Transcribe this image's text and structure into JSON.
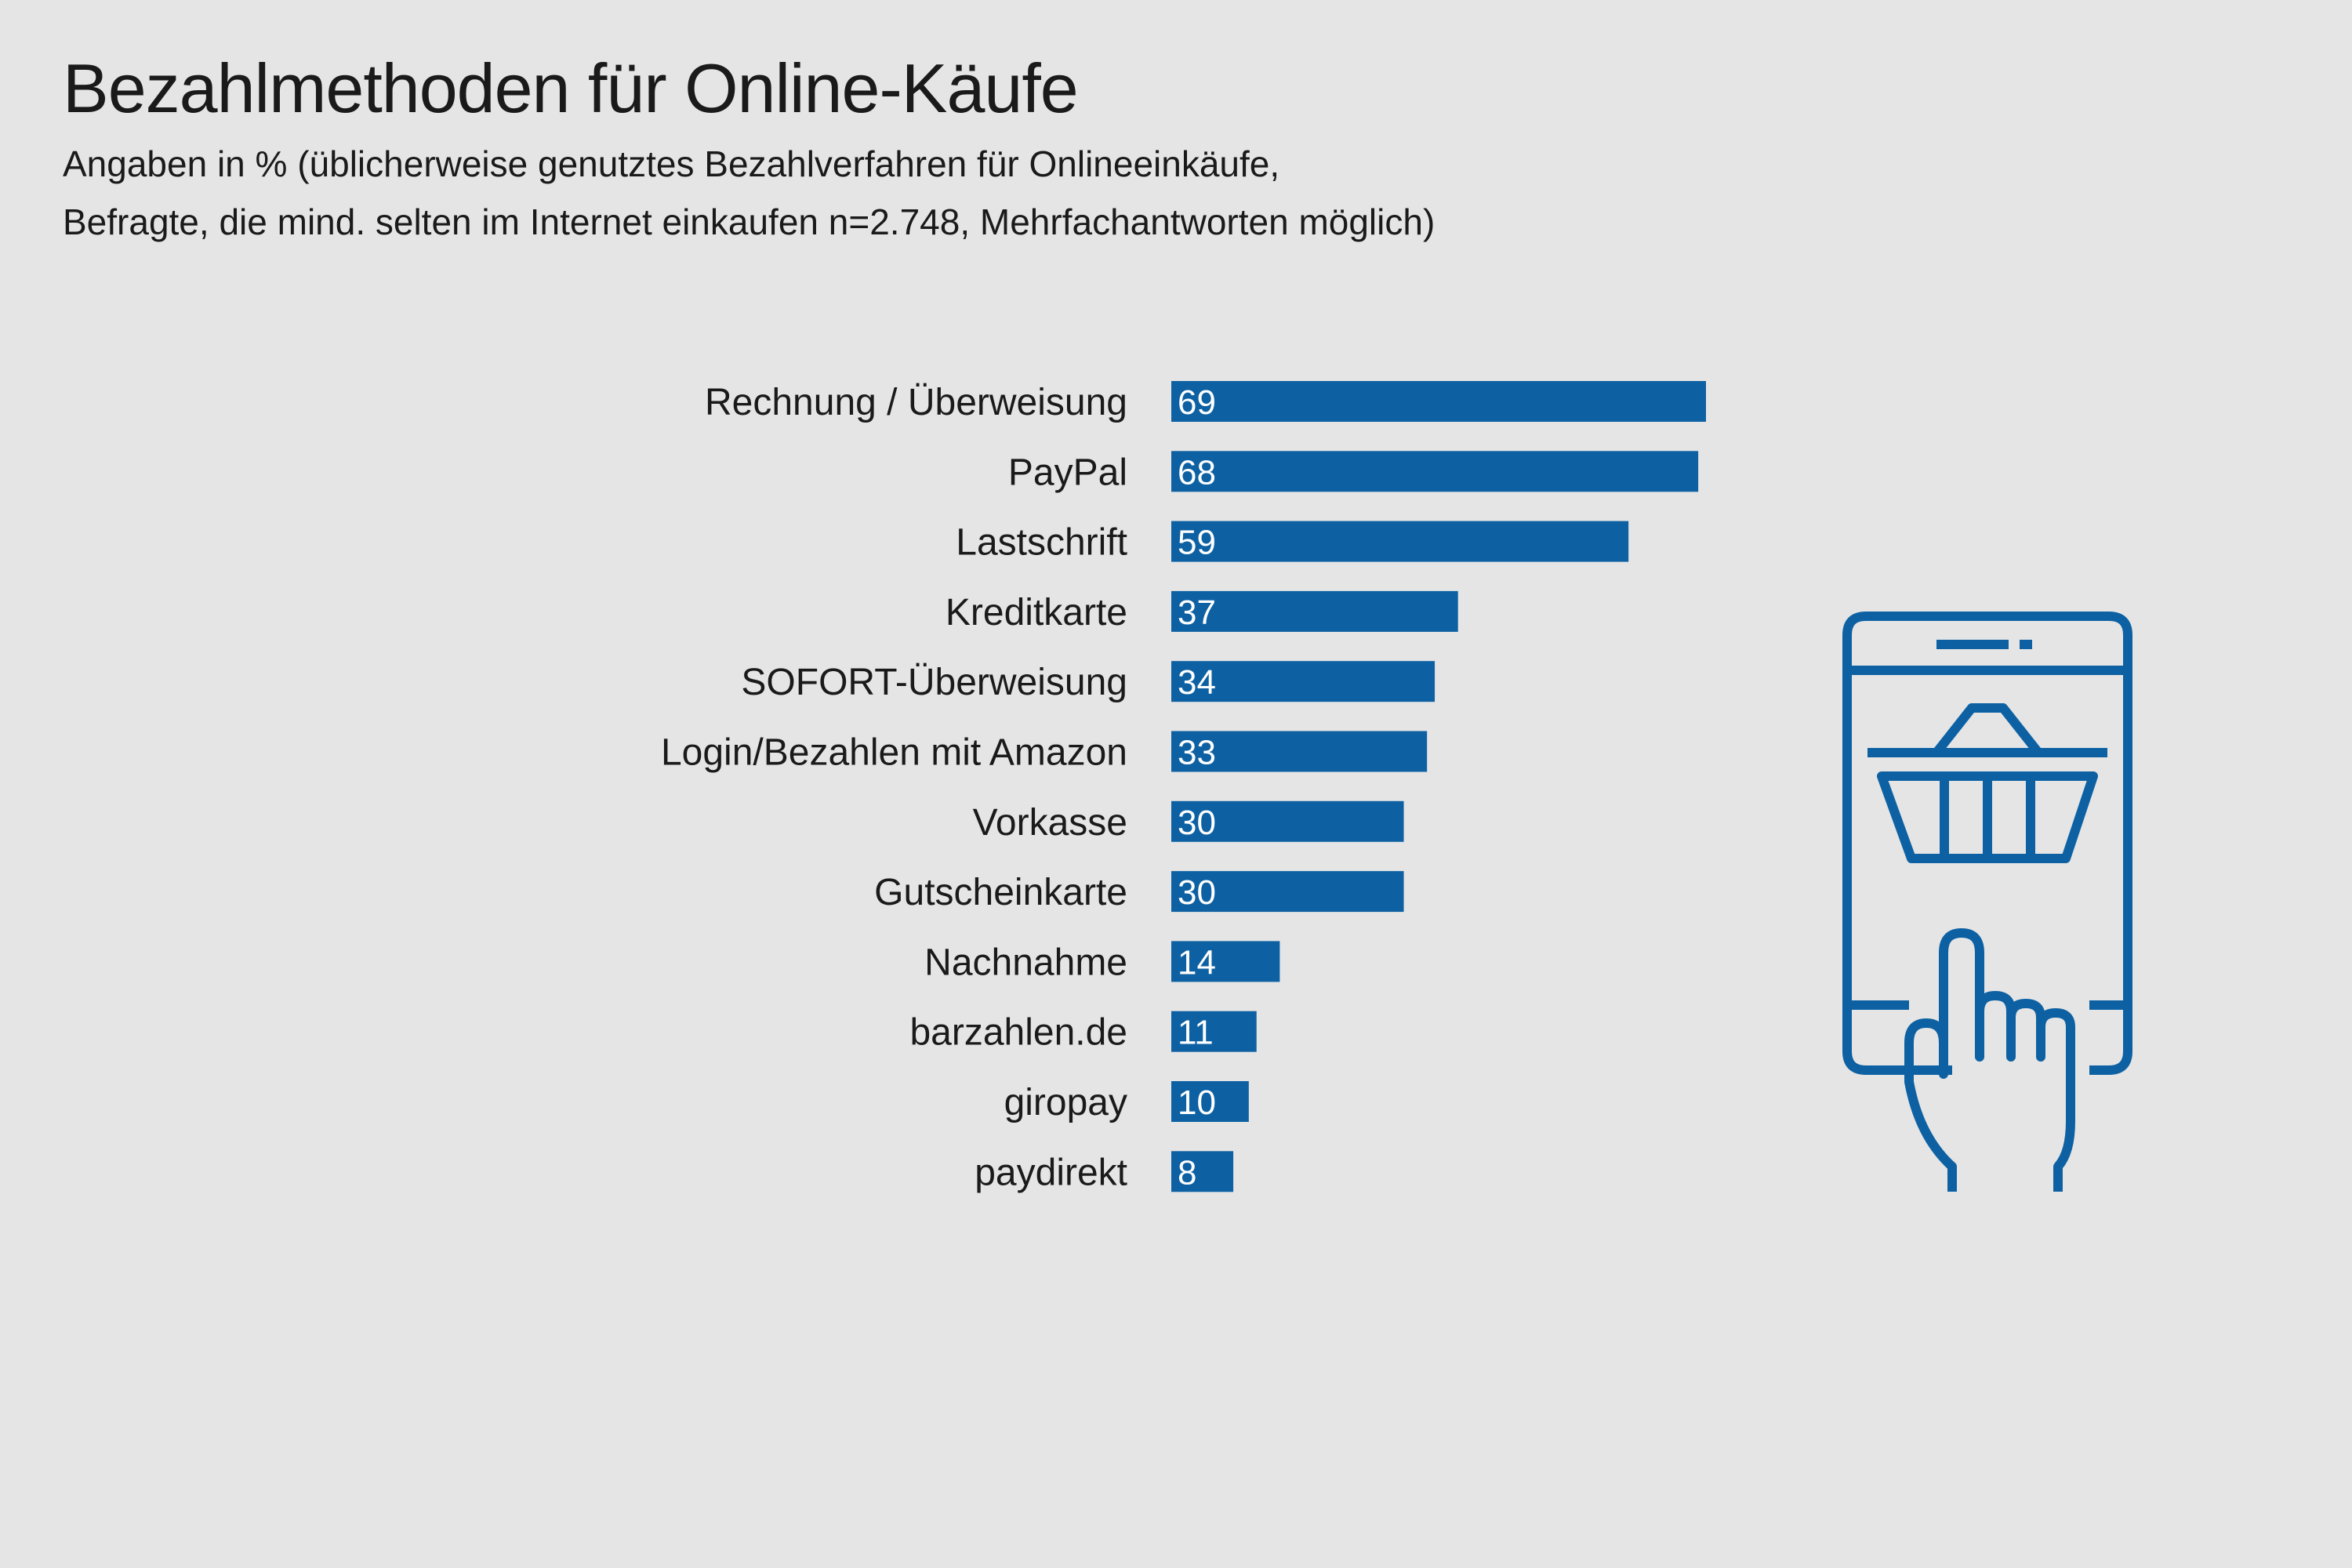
{
  "title": "Bezahlmethoden für Online-Käufe",
  "subtitle": {
    "line1": "Angaben in % (üblicherweise genutztes Bezahlverfahren für Onlineeinkäufe,",
    "line2": "Befragte, die mind. selten im Internet einkaufen n=2.748, Mehrfachantworten möglich)"
  },
  "colors": {
    "bar": "#0d61a3",
    "background": "#e5e5e5",
    "icon": "#0d61a3"
  },
  "icon": "phone-shopping-basket-hand-icon",
  "chart_data": {
    "type": "bar",
    "orientation": "horizontal",
    "categories": [
      "Rechnung / Überweisung",
      "PayPal",
      "Lastschrift",
      "Kreditkarte",
      "SOFORT-Überweisung",
      "Login/Bezahlen mit Amazon",
      "Vorkasse",
      "Gutscheinkarte",
      "Nachnahme",
      "barzahlen.de",
      "giropay",
      "paydirekt"
    ],
    "values": [
      69,
      68,
      59,
      37,
      34,
      33,
      30,
      30,
      14,
      11,
      10,
      8
    ],
    "xlim": [
      0,
      69
    ],
    "grid": false,
    "legend": "none"
  }
}
